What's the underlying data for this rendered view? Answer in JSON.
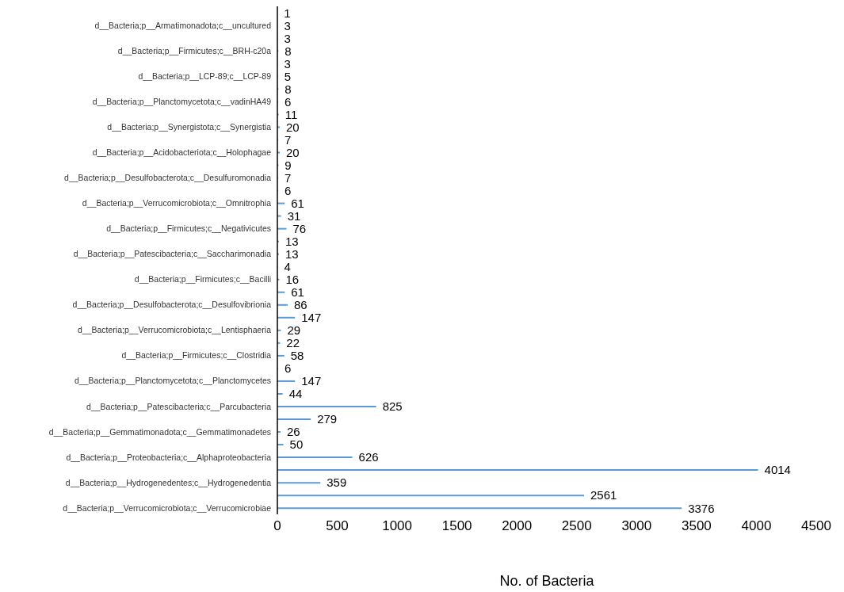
{
  "chart_data": {
    "type": "bar",
    "orientation": "horizontal",
    "categories": [
      null,
      "d__Bacteria;p__Armatimonadota;c__uncultured",
      null,
      "d__Bacteria;p__Firmicutes;c__BRH-c20a",
      null,
      "d__Bacteria;p__LCP-89;c__LCP-89",
      null,
      "d__Bacteria;p__Planctomycetota;c__vadinHA49",
      null,
      "d__Bacteria;p__Synergistota;c__Synergistia",
      null,
      "d__Bacteria;p__Acidobacteriota;c__Holophagae",
      null,
      "d__Bacteria;p__Desulfobacterota;c__Desulfuromonadia",
      null,
      "d__Bacteria;p__Verrucomicrobiota;c__Omnitrophia",
      null,
      "d__Bacteria;p__Firmicutes;c__Negativicutes",
      null,
      "d__Bacteria;p__Patescibacteria;c__Saccharimonadia",
      null,
      "d__Bacteria;p__Firmicutes;c__Bacilli",
      null,
      "d__Bacteria;p__Desulfobacterota;c__Desulfovibrionia",
      null,
      "d__Bacteria;p__Verrucomicrobiota;c__Lentisphaeria",
      null,
      "d__Bacteria;p__Firmicutes;c__Clostridia",
      null,
      "d__Bacteria;p__Planctomycetota;c__Planctomycetes",
      null,
      "d__Bacteria;p__Patescibacteria;c__Parcubacteria",
      null,
      "d__Bacteria;p__Gemmatimonadota;c__Gemmatimonadetes",
      null,
      "d__Bacteria;p__Proteobacteria;c__Alphaproteobacteria",
      null,
      "d__Bacteria;p__Hydrogenedentes;c__Hydrogenedentia",
      null,
      "d__Bacteria;p__Verrucomicrobiota;c__Verrucomicrobiae"
    ],
    "values": [
      1,
      3,
      3,
      8,
      3,
      5,
      8,
      6,
      11,
      20,
      7,
      20,
      9,
      7,
      6,
      61,
      31,
      76,
      13,
      13,
      4,
      16,
      61,
      86,
      147,
      29,
      22,
      58,
      6,
      147,
      44,
      825,
      279,
      26,
      50,
      626,
      4014,
      359,
      2561,
      3376
    ],
    "color": "#5b9bd5",
    "xlabel": "No. of Bacteria",
    "xlim": [
      0,
      4500
    ],
    "xticks": [
      0,
      500,
      1000,
      1500,
      2000,
      2500,
      3000,
      3500,
      4000,
      4500
    ],
    "data_labels": true
  }
}
